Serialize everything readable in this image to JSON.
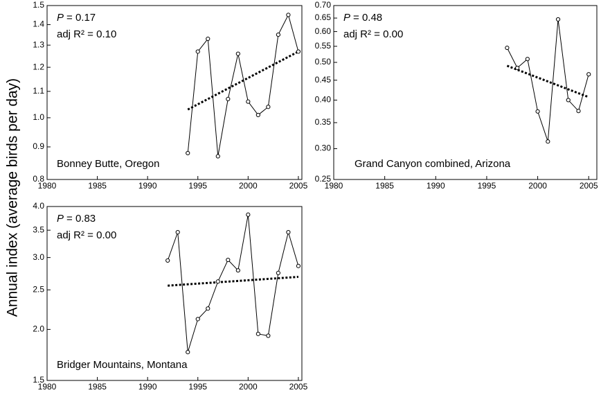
{
  "ylabel": "Annual index (average birds per day)",
  "chart_data": [
    {
      "type": "line",
      "title": "Bonney Butte, Oregon",
      "p_symbol": "P",
      "p_text": "= 0.17",
      "r2_text": "adj R² = 0.10",
      "log_y": true,
      "color": "#000000",
      "x": [
        1994,
        1995,
        1996,
        1997,
        1998,
        1999,
        2000,
        2001,
        2002,
        2003,
        2004,
        2005
      ],
      "values": [
        0.88,
        1.27,
        1.33,
        0.87,
        1.07,
        1.26,
        1.06,
        1.01,
        1.04,
        1.35,
        1.45,
        1.27
      ],
      "trend": {
        "x": [
          1994,
          2005
        ],
        "values": [
          1.03,
          1.27
        ]
      },
      "xlim": [
        1980,
        2005.35
      ],
      "xticks": [
        1980,
        1985,
        1990,
        1995,
        2000,
        2005
      ],
      "ylim": [
        0.8,
        1.5
      ],
      "yticks": [
        0.8,
        0.9,
        {
          "value": 1.0,
          "label": "1.0"
        },
        1.1,
        1.2,
        1.3,
        1.4,
        1.5
      ]
    },
    {
      "type": "line",
      "title": "Grand Canyon combined, Arizona",
      "p_symbol": "P",
      "p_text": "= 0.48",
      "r2_text": "adj R² = 0.00",
      "log_y": true,
      "color": "#000000",
      "x": [
        1997,
        1998,
        1999,
        2000,
        2001,
        2002,
        2003,
        2004,
        2005
      ],
      "values": [
        0.545,
        0.484,
        0.51,
        0.374,
        0.313,
        0.645,
        0.4,
        0.375,
        0.466
      ],
      "trend": {
        "x": [
          1997,
          2005
        ],
        "values": [
          0.49,
          0.407
        ]
      },
      "xlim": [
        1980,
        2005.8
      ],
      "xticks": [
        1980,
        1985,
        1990,
        1995,
        2000,
        2005
      ],
      "ylim": [
        0.25,
        0.7
      ],
      "yticks": [
        0.25,
        {
          "value": 0.3,
          "label": "0.30"
        },
        0.35,
        {
          "value": 0.4,
          "label": "0.40"
        },
        0.45,
        {
          "value": 0.5,
          "label": "0.50"
        },
        0.55,
        {
          "value": 0.6,
          "label": "0.60"
        },
        0.65,
        {
          "value": 0.7,
          "label": "0.70"
        }
      ]
    },
    {
      "type": "line",
      "title": "Bridger Mountains, Montana",
      "p_symbol": "P",
      "p_text": "= 0.83",
      "r2_text": "adj R² = 0.00",
      "log_y": true,
      "color": "#000000",
      "x": [
        1992,
        1993,
        1994,
        1995,
        1996,
        1997,
        1998,
        1999,
        2000,
        2001,
        2002,
        2003,
        2004,
        2005
      ],
      "values": [
        2.95,
        3.46,
        1.76,
        2.12,
        2.25,
        2.62,
        2.96,
        2.79,
        3.82,
        1.95,
        1.93,
        2.75,
        3.46,
        2.86
      ],
      "trend": {
        "x": [
          1992,
          2005
        ],
        "values": [
          2.56,
          2.69
        ]
      },
      "xlim": [
        1980,
        2005.35
      ],
      "xticks": [
        1980,
        1985,
        1990,
        1995,
        2000,
        2005
      ],
      "ylim": [
        1.5,
        4.0
      ],
      "yticks": [
        1.5,
        {
          "value": 2.0,
          "label": "2.0"
        },
        2.5,
        {
          "value": 3.0,
          "label": "3.0"
        },
        3.5,
        {
          "value": 4.0,
          "label": "4.0"
        }
      ]
    }
  ]
}
